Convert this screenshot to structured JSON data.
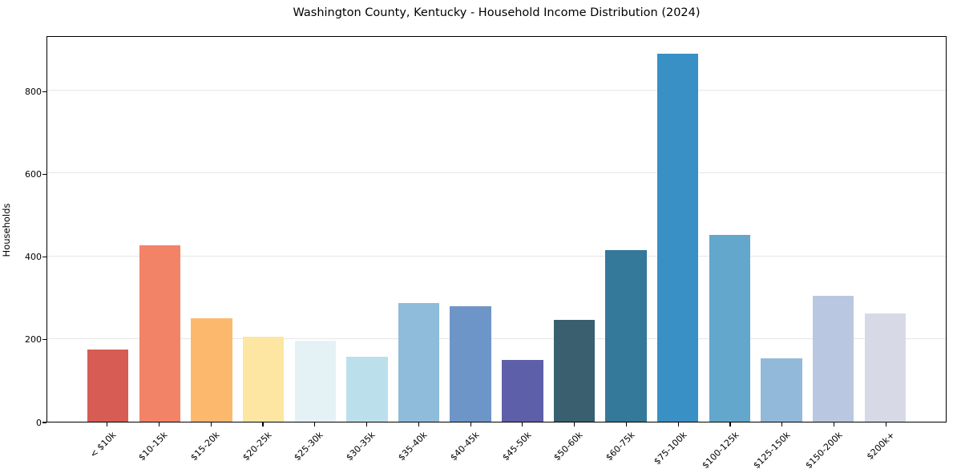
{
  "chart_data": {
    "type": "bar",
    "title": "Washington County, Kentucky - Household Income Distribution (2024)",
    "xlabel": "",
    "ylabel": "Households",
    "categories": [
      "< $10k",
      "$10-15k",
      "$15-20k",
      "$20-25k",
      "$25-30k",
      "$30-35k",
      "$35-40k",
      "$40-45k",
      "$45-50k",
      "$50-60k",
      "$60-75k",
      "$75-100k",
      "$100-125k",
      "$125-150k",
      "$150-200k",
      "$200k+"
    ],
    "values": [
      174,
      426,
      251,
      206,
      196,
      157,
      287,
      280,
      149,
      246,
      415,
      890,
      452,
      153,
      305,
      261
    ],
    "bar_colors": [
      "#d65c54",
      "#f28367",
      "#fcb96e",
      "#fde6a1",
      "#e5f2f5",
      "#bcdfec",
      "#8ebcda",
      "#6e95c8",
      "#5d5fa9",
      "#3a6070",
      "#34789a",
      "#3890c5",
      "#63a7cd",
      "#92b9d9",
      "#b9c8e0",
      "#d7d9e7"
    ],
    "yticks": [
      0,
      200,
      400,
      600,
      800
    ],
    "ylim": [
      0,
      934
    ],
    "grid": "horizontal",
    "legend": "none",
    "axis_color": "#000000",
    "gridline_color": "#e6e6e6"
  }
}
